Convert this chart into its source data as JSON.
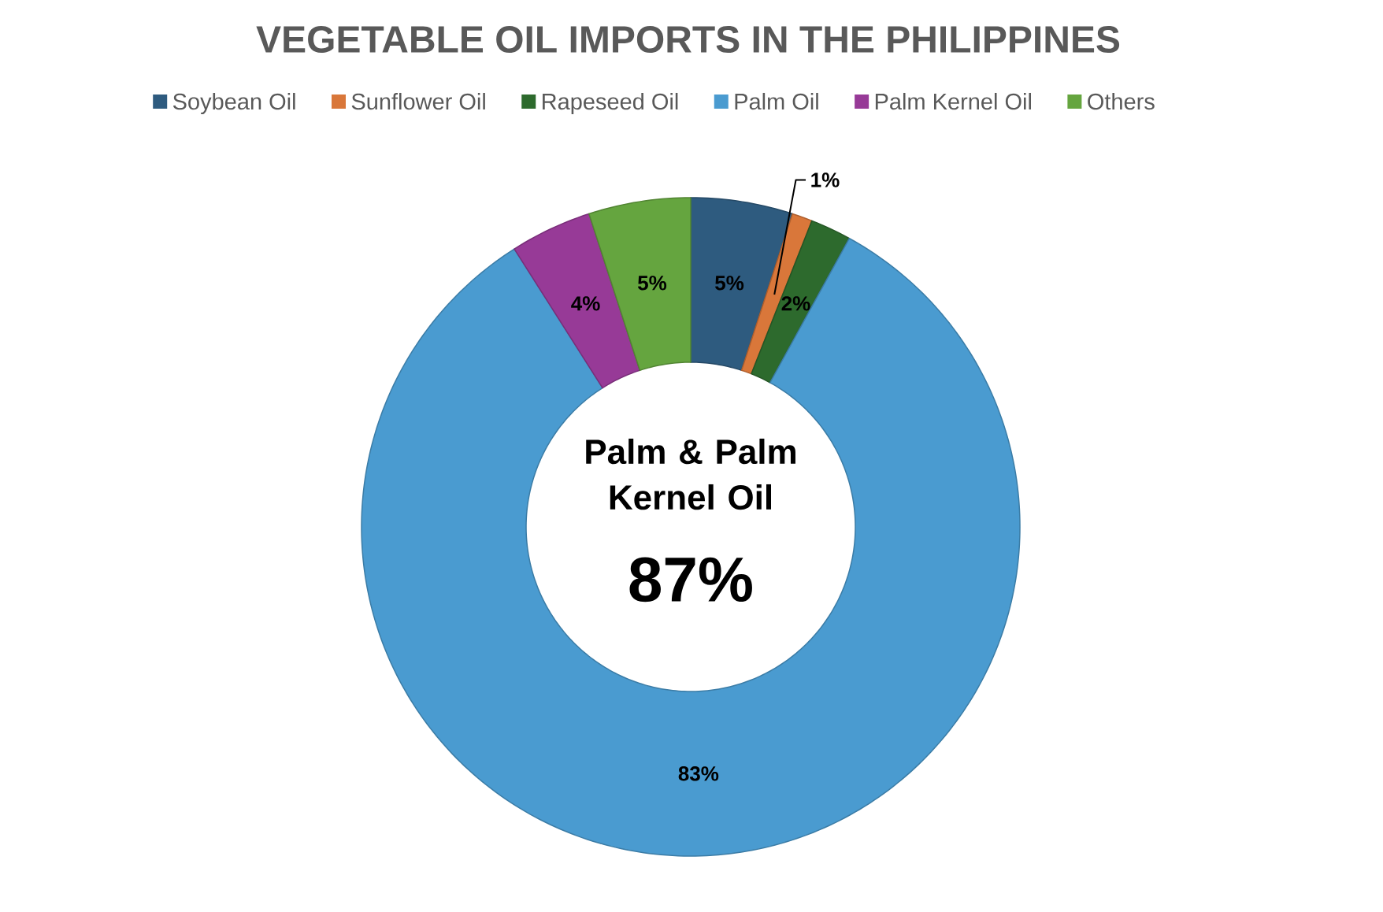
{
  "chart_data": {
    "type": "donut",
    "title": "VEGETABLE OIL IMPORTS IN THE PHILIPPINES",
    "categories": [
      "Soybean Oil",
      "Sunflower Oil",
      "Rapeseed Oil",
      "Palm Oil",
      "Palm Kernel Oil",
      "Others"
    ],
    "values": [
      5,
      1,
      2,
      83,
      4,
      5
    ],
    "value_labels": [
      "5%",
      "1%",
      "2%",
      "83%",
      "4%",
      "5%"
    ],
    "colors": [
      "#2e5b7f",
      "#d9773a",
      "#2d6a2d",
      "#4a9bd0",
      "#973a97",
      "#65a53f"
    ],
    "legend": "top",
    "annotations": [
      "Palm & Palm Kernel Oil",
      "87%"
    ]
  }
}
